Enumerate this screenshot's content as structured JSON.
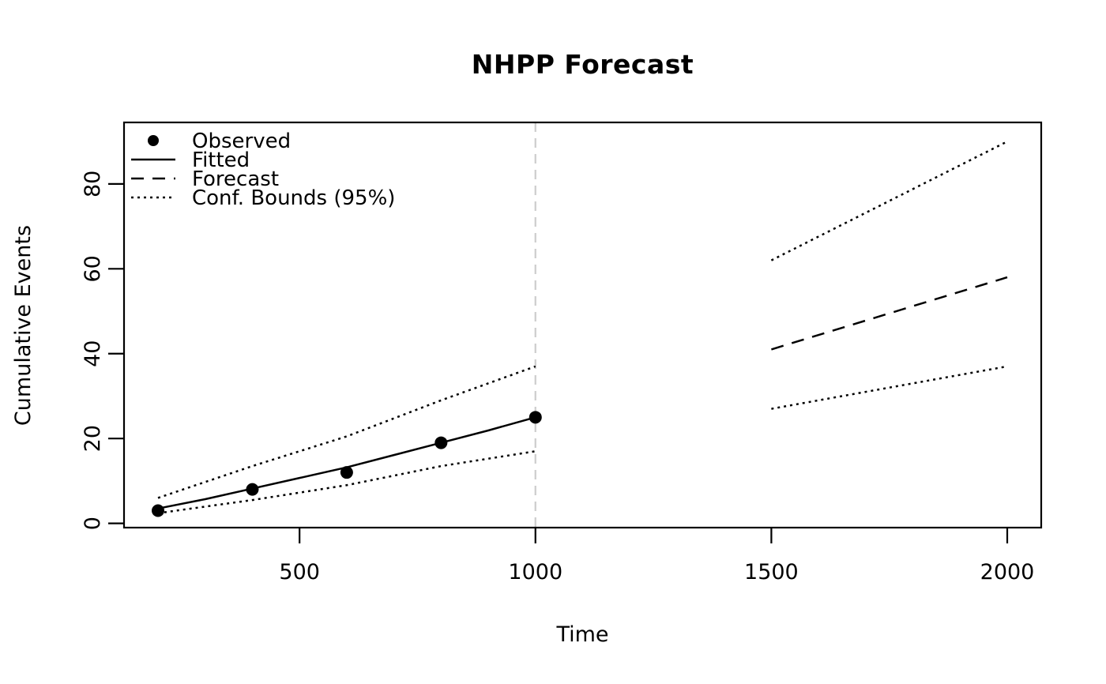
{
  "page": {
    "background_color": "#ffffff",
    "foreground_color": "#000000"
  },
  "chart_data": {
    "type": "line",
    "title": "NHPP Forecast",
    "xlabel": "Time",
    "ylabel": "Cumulative Events",
    "x_ticks": [
      500,
      1000,
      1500,
      2000
    ],
    "y_ticks": [
      0,
      20,
      40,
      60,
      80
    ],
    "xlim": [
      128,
      2072
    ],
    "ylim": [
      -1,
      94.5
    ],
    "grid": false,
    "legend_position": "top-left",
    "legend": [
      {
        "label": "Observed",
        "symbol": "point"
      },
      {
        "label": "Fitted",
        "symbol": "solid"
      },
      {
        "label": "Forecast",
        "symbol": "dashed"
      },
      {
        "label": "Conf. Bounds (95%)",
        "symbol": "dotted"
      }
    ],
    "observed_points": {
      "name": "observed",
      "x": [
        200,
        400,
        600,
        800,
        1000
      ],
      "y": [
        3,
        8,
        12,
        19,
        25
      ],
      "color": "#000000"
    },
    "series": [
      {
        "name": "fitted",
        "style": "solid",
        "color": "#000000",
        "x": [
          200,
          300,
          400,
          500,
          600,
          700,
          800,
          900,
          1000
        ],
        "y": [
          3.5,
          5.7,
          8.2,
          10.7,
          13.2,
          16.1,
          19,
          21.9,
          25
        ]
      },
      {
        "name": "conf-upper-fitted",
        "style": "dotted",
        "color": "#000000",
        "x": [
          200,
          400,
          600,
          800,
          1000
        ],
        "y": [
          6,
          13.5,
          20.5,
          29,
          37
        ]
      },
      {
        "name": "conf-lower-fitted",
        "style": "dotted",
        "color": "#000000",
        "x": [
          200,
          400,
          600,
          800,
          1000
        ],
        "y": [
          2.4,
          5.5,
          9,
          13.5,
          17
        ]
      },
      {
        "name": "forecast",
        "style": "dashed",
        "color": "#000000",
        "x": [
          1500,
          1750,
          2000
        ],
        "y": [
          41,
          49.5,
          58
        ]
      },
      {
        "name": "conf-upper-forecast",
        "style": "dotted",
        "color": "#000000",
        "x": [
          1500,
          2000
        ],
        "y": [
          62,
          90
        ]
      },
      {
        "name": "conf-lower-forecast",
        "style": "dotted",
        "color": "#000000",
        "x": [
          1500,
          2000
        ],
        "y": [
          27,
          37
        ]
      }
    ],
    "vline": {
      "x": 1000,
      "style": "dashed",
      "color": "#cdcdcd"
    }
  }
}
